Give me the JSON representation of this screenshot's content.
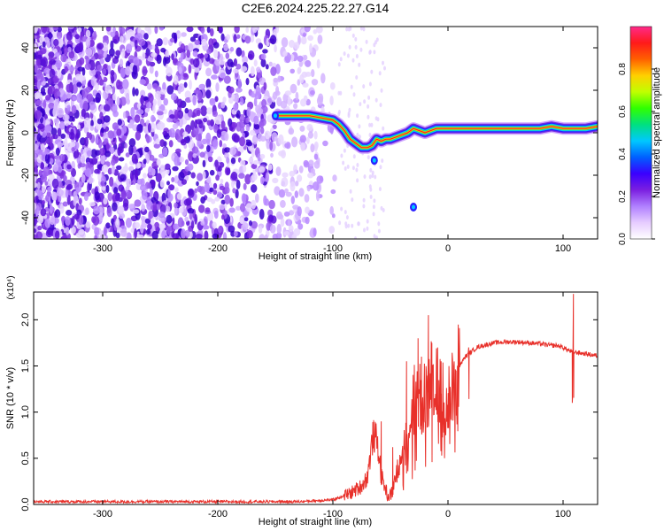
{
  "figure": {
    "title": "C2E6.2024.225.22.27.G14"
  },
  "chart_data": [
    {
      "type": "heatmap",
      "panel": "spectrogram",
      "xlabel": "Height of straight line (km)",
      "ylabel": "Frequency (Hz)",
      "xlim": [
        -360,
        130
      ],
      "ylim": [
        -50,
        50
      ],
      "xticks": [
        -300,
        -200,
        -100,
        0,
        100
      ],
      "yticks": [
        -40,
        -20,
        0,
        20,
        40
      ],
      "colorbar": {
        "label": "Normalized spectral amplitude",
        "range": [
          0,
          1
        ],
        "ticks": [
          "0.0",
          "0.2",
          "0.4",
          "0.6",
          "0.8"
        ],
        "colormap": [
          "#ffffff",
          "#e6ccff",
          "#b080ff",
          "#7b1fe0",
          "#3a00ff",
          "#0060ff",
          "#00c8ff",
          "#00e080",
          "#30ff00",
          "#c0ff00",
          "#ffd000",
          "#ff6000",
          "#ff1a1a",
          "#ff2a8a"
        ]
      },
      "ridge": {
        "x": [
          -148,
          -130,
          -120,
          -110,
          -100,
          -95,
          -90,
          -85,
          -80,
          -75,
          -70,
          -66,
          -62,
          -58,
          -54,
          -50,
          -45,
          -40,
          -35,
          -30,
          -25,
          -20,
          -15,
          -10,
          -5,
          0,
          20,
          40,
          60,
          80,
          90,
          100,
          110,
          120,
          130
        ],
        "y": [
          8,
          8,
          8,
          7,
          6,
          4,
          1,
          -3,
          -5,
          -7,
          -7,
          -6,
          -3,
          -4,
          -3,
          -3,
          -2,
          -1,
          0,
          2,
          1,
          0,
          1,
          2,
          2,
          2,
          2,
          2,
          2,
          2,
          3,
          2,
          2,
          2,
          3
        ]
      },
      "noise_region": {
        "x": [
          -360,
          -100
        ],
        "note": ""
      }
    },
    {
      "type": "line",
      "panel": "snr",
      "xlabel": "Height of straight line (km)",
      "ylabel": "SNR (10 * v/v)",
      "y_multiplier": "(x10⁴)",
      "xlim": [
        -360,
        130
      ],
      "ylim": [
        0,
        2.3
      ],
      "xticks": [
        -300,
        -200,
        -100,
        0,
        100
      ],
      "yticks": [
        "0.0",
        "0.5",
        "1.0",
        "1.5",
        "2.0"
      ],
      "ytick_values": [
        0,
        0.5,
        1.0,
        1.5,
        2.0
      ],
      "color": "#e8302a",
      "anchors": {
        "x": [
          -360,
          -130,
          -100,
          -85,
          -75,
          -70,
          -65,
          -62,
          -60,
          -58,
          -55,
          -52,
          -50,
          -48,
          -45,
          -42,
          -40,
          -38,
          -35,
          -32,
          -30,
          -28,
          -25,
          -22,
          -20,
          -18,
          -15,
          -12,
          -10,
          -8,
          -5,
          -2,
          0,
          3,
          6,
          8,
          10,
          15,
          20,
          25,
          30,
          40,
          50,
          60,
          70,
          80,
          90,
          95,
          100,
          103,
          106,
          108,
          110,
          115,
          120,
          130
        ],
        "y": [
          0.03,
          0.03,
          0.05,
          0.12,
          0.2,
          0.3,
          0.75,
          0.7,
          0.55,
          0.3,
          0.2,
          0.08,
          0.1,
          0.15,
          0.35,
          0.45,
          0.6,
          0.7,
          0.85,
          0.95,
          1.2,
          1.1,
          1.25,
          1.0,
          1.35,
          1.15,
          1.4,
          1.25,
          1.35,
          1.2,
          1.2,
          1.0,
          1.1,
          1.25,
          1.3,
          1.45,
          1.5,
          1.6,
          1.65,
          1.7,
          1.72,
          1.75,
          1.76,
          1.76,
          1.75,
          1.74,
          1.72,
          1.72,
          1.7,
          1.68,
          1.66,
          1.65,
          1.65,
          1.64,
          1.63,
          1.61
        ]
      },
      "spikes": {
        "x": [
          -58,
          -48,
          -36,
          -26,
          -23,
          -17,
          -14,
          -9,
          -6,
          7,
          18,
          108,
          109
        ],
        "y": [
          0.9,
          0.62,
          1.55,
          1.8,
          1.6,
          2.05,
          1.75,
          1.7,
          1.55,
          1.45,
          1.7,
          1.1,
          2.28
        ]
      }
    }
  ]
}
